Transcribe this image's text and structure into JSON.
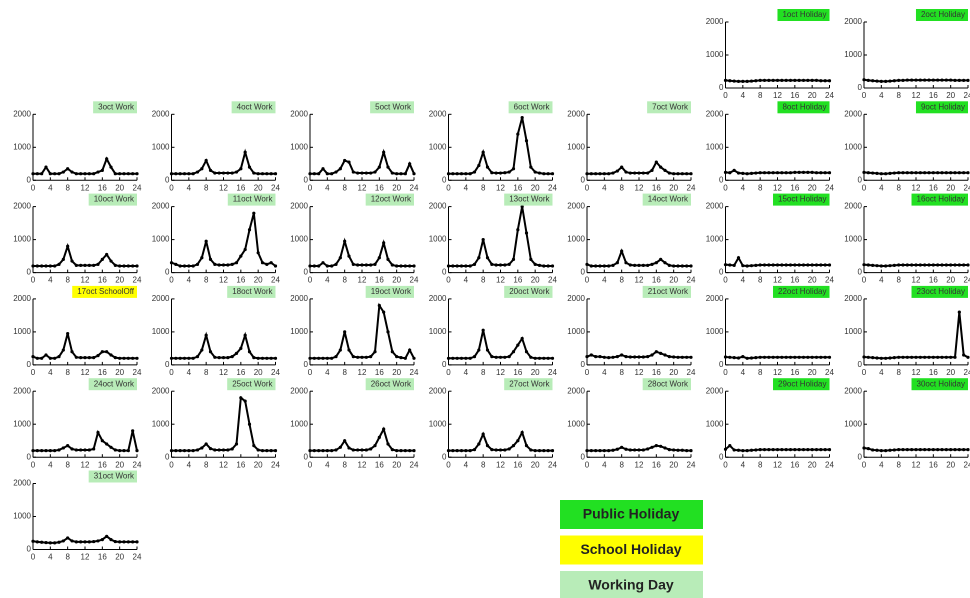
{
  "chart_data": {
    "type": "scatter",
    "x": [
      0,
      1,
      2,
      3,
      4,
      5,
      6,
      7,
      8,
      9,
      10,
      11,
      12,
      13,
      14,
      15,
      16,
      17,
      18,
      19,
      20,
      21,
      22,
      23,
      24
    ],
    "xlim": [
      0,
      24
    ],
    "xticks": [
      0,
      4,
      8,
      12,
      16,
      20,
      24
    ],
    "ylim": [
      0,
      2000
    ],
    "yticks": [
      0,
      1000,
      2000
    ],
    "legend": [
      {
        "name": "Public Holiday",
        "color": "#22e022"
      },
      {
        "name": "School Holiday",
        "color": "#ffff00"
      },
      {
        "name": "Working Day",
        "color": "#b8ecb8"
      }
    ],
    "panels": [
      {
        "title": "1oct Holiday",
        "color": "#22e022",
        "values": [
          230,
          220,
          210,
          200,
          200,
          200,
          210,
          220,
          230,
          230,
          230,
          230,
          230,
          230,
          230,
          230,
          230,
          230,
          230,
          230,
          230,
          230,
          220,
          220,
          220
        ]
      },
      {
        "title": "2oct Holiday",
        "color": "#22e022",
        "values": [
          250,
          230,
          220,
          210,
          200,
          200,
          210,
          220,
          230,
          230,
          240,
          240,
          240,
          240,
          240,
          240,
          240,
          240,
          240,
          240,
          240,
          230,
          230,
          230,
          230
        ]
      },
      {
        "title": "3oct Work",
        "color": "#b8ecb8",
        "values": [
          200,
          200,
          200,
          400,
          200,
          200,
          200,
          250,
          350,
          250,
          200,
          200,
          200,
          200,
          200,
          250,
          300,
          650,
          400,
          200,
          200,
          200,
          200,
          200,
          200
        ]
      },
      {
        "title": "4oct Work",
        "color": "#b8ecb8",
        "values": [
          200,
          200,
          200,
          200,
          200,
          200,
          250,
          350,
          600,
          300,
          220,
          220,
          220,
          220,
          220,
          250,
          350,
          850,
          400,
          220,
          200,
          200,
          200,
          200,
          200
        ]
      },
      {
        "title": "5oct Work",
        "color": "#b8ecb8",
        "values": [
          200,
          200,
          200,
          350,
          200,
          200,
          250,
          350,
          600,
          550,
          250,
          220,
          220,
          220,
          220,
          250,
          400,
          850,
          400,
          220,
          200,
          200,
          200,
          500,
          200
        ]
      },
      {
        "title": "6oct Work",
        "color": "#b8ecb8",
        "values": [
          200,
          200,
          200,
          200,
          200,
          200,
          250,
          450,
          850,
          400,
          230,
          220,
          220,
          230,
          250,
          350,
          1400,
          1900,
          1200,
          400,
          250,
          220,
          200,
          200,
          200
        ]
      },
      {
        "title": "7oct Work",
        "color": "#b8ecb8",
        "values": [
          200,
          200,
          200,
          200,
          200,
          200,
          220,
          280,
          400,
          250,
          220,
          220,
          220,
          220,
          220,
          300,
          550,
          400,
          300,
          220,
          200,
          200,
          200,
          200,
          200
        ]
      },
      {
        "title": "8oct Holiday",
        "color": "#22e022",
        "values": [
          240,
          230,
          300,
          220,
          210,
          200,
          210,
          220,
          230,
          230,
          230,
          230,
          230,
          230,
          230,
          230,
          240,
          240,
          240,
          240,
          240,
          230,
          230,
          230,
          230
        ]
      },
      {
        "title": "9oct Holiday",
        "color": "#22e022",
        "values": [
          240,
          230,
          220,
          210,
          200,
          200,
          210,
          220,
          230,
          230,
          230,
          230,
          230,
          230,
          230,
          230,
          230,
          230,
          230,
          230,
          230,
          230,
          230,
          230,
          230
        ]
      },
      {
        "title": "10oct Work",
        "color": "#b8ecb8",
        "values": [
          200,
          200,
          200,
          200,
          200,
          200,
          250,
          400,
          800,
          350,
          220,
          220,
          220,
          220,
          220,
          250,
          400,
          550,
          350,
          220,
          200,
          200,
          200,
          200,
          200
        ]
      },
      {
        "title": "11oct Work",
        "color": "#b8ecb8",
        "values": [
          300,
          250,
          200,
          200,
          200,
          200,
          250,
          450,
          950,
          400,
          250,
          230,
          230,
          230,
          250,
          300,
          500,
          700,
          1300,
          1800,
          600,
          300,
          250,
          300,
          200
        ]
      },
      {
        "title": "12oct Work",
        "color": "#b8ecb8",
        "values": [
          200,
          200,
          200,
          300,
          200,
          200,
          250,
          450,
          950,
          500,
          250,
          230,
          230,
          230,
          230,
          250,
          450,
          900,
          400,
          230,
          200,
          200,
          200,
          200,
          200
        ]
      },
      {
        "title": "13oct Work",
        "color": "#b8ecb8",
        "values": [
          200,
          200,
          200,
          200,
          200,
          200,
          250,
          450,
          1000,
          450,
          250,
          230,
          230,
          230,
          250,
          400,
          1300,
          2000,
          1200,
          400,
          250,
          220,
          200,
          200,
          200
        ]
      },
      {
        "title": "14oct Work",
        "color": "#b8ecb8",
        "values": [
          250,
          200,
          200,
          200,
          200,
          200,
          220,
          300,
          650,
          300,
          230,
          220,
          220,
          220,
          220,
          250,
          300,
          400,
          300,
          220,
          200,
          200,
          200,
          200,
          200
        ]
      },
      {
        "title": "15oct Holiday",
        "color": "#22e022",
        "values": [
          240,
          230,
          220,
          450,
          210,
          200,
          210,
          220,
          230,
          230,
          230,
          230,
          230,
          230,
          230,
          230,
          230,
          230,
          230,
          230,
          230,
          230,
          230,
          230,
          230
        ]
      },
      {
        "title": "16oct Holiday",
        "color": "#22e022",
        "values": [
          240,
          230,
          220,
          210,
          200,
          200,
          210,
          220,
          230,
          230,
          230,
          230,
          230,
          230,
          230,
          230,
          230,
          230,
          230,
          230,
          230,
          230,
          230,
          230,
          230
        ]
      },
      {
        "title": "17oct SchoolOff",
        "color": "#ffff00",
        "values": [
          250,
          200,
          200,
          300,
          200,
          200,
          250,
          450,
          950,
          400,
          230,
          220,
          220,
          220,
          220,
          280,
          400,
          400,
          300,
          220,
          200,
          200,
          200,
          200,
          200
        ]
      },
      {
        "title": "18oct Work",
        "color": "#b8ecb8",
        "values": [
          200,
          200,
          200,
          200,
          200,
          200,
          250,
          450,
          900,
          400,
          230,
          220,
          220,
          220,
          250,
          350,
          500,
          900,
          400,
          220,
          200,
          200,
          200,
          200,
          200
        ]
      },
      {
        "title": "19oct Work",
        "color": "#b8ecb8",
        "values": [
          200,
          200,
          200,
          200,
          200,
          200,
          250,
          450,
          1000,
          450,
          250,
          230,
          230,
          230,
          250,
          400,
          1800,
          1600,
          1000,
          400,
          250,
          220,
          200,
          450,
          200
        ]
      },
      {
        "title": "20oct Work",
        "color": "#b8ecb8",
        "values": [
          200,
          200,
          200,
          200,
          200,
          200,
          250,
          450,
          1050,
          450,
          250,
          230,
          230,
          230,
          250,
          400,
          600,
          800,
          400,
          230,
          200,
          200,
          200,
          200,
          200
        ]
      },
      {
        "title": "21oct Work",
        "color": "#b8ecb8",
        "values": [
          250,
          300,
          250,
          250,
          230,
          220,
          230,
          250,
          300,
          250,
          240,
          240,
          240,
          240,
          250,
          300,
          400,
          350,
          300,
          250,
          240,
          230,
          230,
          230,
          230
        ]
      },
      {
        "title": "22oct Holiday",
        "color": "#22e022",
        "values": [
          240,
          230,
          220,
          210,
          250,
          200,
          210,
          220,
          230,
          230,
          230,
          230,
          230,
          230,
          230,
          230,
          230,
          230,
          230,
          230,
          230,
          230,
          230,
          230,
          230
        ]
      },
      {
        "title": "23oct Holiday",
        "color": "#22e022",
        "values": [
          240,
          230,
          220,
          210,
          200,
          200,
          210,
          220,
          230,
          230,
          230,
          230,
          230,
          230,
          230,
          230,
          230,
          230,
          230,
          230,
          230,
          230,
          1600,
          300,
          230
        ]
      },
      {
        "title": "24oct Work",
        "color": "#b8ecb8",
        "values": [
          200,
          200,
          200,
          200,
          200,
          200,
          220,
          280,
          350,
          250,
          220,
          220,
          220,
          220,
          250,
          750,
          500,
          400,
          300,
          220,
          200,
          200,
          200,
          800,
          200
        ]
      },
      {
        "title": "25oct Work",
        "color": "#b8ecb8",
        "values": [
          200,
          200,
          200,
          200,
          200,
          200,
          220,
          280,
          400,
          260,
          220,
          220,
          220,
          220,
          250,
          400,
          1800,
          1700,
          1000,
          350,
          220,
          200,
          200,
          200,
          200
        ]
      },
      {
        "title": "26oct Work",
        "color": "#b8ecb8",
        "values": [
          200,
          200,
          200,
          200,
          200,
          200,
          220,
          300,
          500,
          280,
          220,
          220,
          220,
          220,
          250,
          350,
          600,
          850,
          400,
          230,
          200,
          200,
          200,
          200,
          200
        ]
      },
      {
        "title": "27oct Work",
        "color": "#b8ecb8",
        "values": [
          200,
          200,
          200,
          200,
          200,
          200,
          230,
          400,
          700,
          350,
          230,
          220,
          220,
          220,
          250,
          350,
          500,
          750,
          350,
          220,
          200,
          200,
          200,
          200,
          200
        ]
      },
      {
        "title": "28oct Work",
        "color": "#b8ecb8",
        "values": [
          200,
          200,
          200,
          200,
          200,
          200,
          210,
          240,
          300,
          240,
          220,
          220,
          220,
          220,
          250,
          300,
          350,
          330,
          280,
          230,
          220,
          210,
          210,
          200,
          200
        ]
      },
      {
        "title": "29oct Holiday",
        "color": "#22e022",
        "values": [
          240,
          350,
          220,
          210,
          200,
          200,
          210,
          220,
          230,
          230,
          230,
          230,
          230,
          230,
          230,
          230,
          230,
          230,
          230,
          230,
          230,
          230,
          230,
          230,
          230
        ]
      },
      {
        "title": "30oct Holiday",
        "color": "#22e022",
        "values": [
          280,
          260,
          220,
          210,
          200,
          200,
          210,
          220,
          230,
          230,
          230,
          230,
          230,
          230,
          230,
          230,
          230,
          230,
          230,
          230,
          230,
          230,
          230,
          230,
          230
        ]
      },
      {
        "title": "31oct Work",
        "color": "#b8ecb8",
        "values": [
          250,
          230,
          220,
          210,
          200,
          200,
          220,
          260,
          350,
          260,
          230,
          230,
          230,
          230,
          240,
          260,
          300,
          400,
          300,
          240,
          230,
          230,
          230,
          230,
          230
        ]
      }
    ]
  }
}
